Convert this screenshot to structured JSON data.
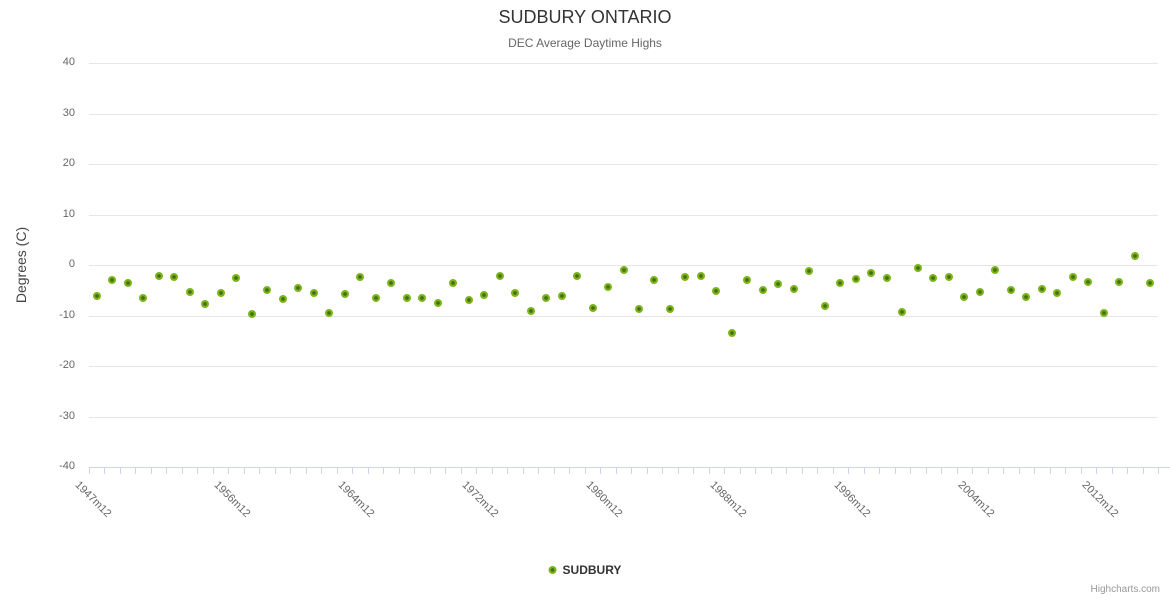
{
  "chart": {
    "title": "SUDBURY ONTARIO",
    "subtitle": "DEC Average Daytime Highs",
    "y_axis_title": "Degrees (C)",
    "legend_label": "SUDBURY",
    "credits": "Highcharts.com"
  },
  "colors": {
    "marker_outer": "#7db41e",
    "marker_core": "#44700f",
    "grid": "#e6e6e6",
    "axis_tick": "#ccd6eb",
    "title_text": "#333333",
    "subtitle_text": "#666666",
    "axis_label_text": "#666666",
    "legend_text": "#333333",
    "credits_text": "#999999"
  },
  "chart_data": {
    "type": "scatter",
    "title": "SUDBURY ONTARIO",
    "subtitle": "DEC Average Daytime Highs",
    "xlabel": "",
    "ylabel": "Degrees (C)",
    "ylim": [
      -40,
      40
    ],
    "y_tick_values": [
      40,
      30,
      20,
      10,
      0,
      -10,
      -20,
      -30,
      -40
    ],
    "y_tick_labels": [
      "40",
      "30",
      "20",
      "10",
      "0",
      "-10",
      "-20",
      "-30",
      "-40"
    ],
    "grid": true,
    "legend_position": "bottom-center",
    "x_tick_labels_visible": [
      "1947m12",
      "1956m12",
      "1964m12",
      "1972m12",
      "1980m12",
      "1988m12",
      "1996m12",
      "2004m12",
      "2012m12"
    ],
    "x_tick_label_indices": [
      0,
      9,
      17,
      25,
      33,
      41,
      49,
      57,
      65
    ],
    "series": [
      {
        "name": "SUDBURY",
        "x_categories": [
          "1947m12",
          "1948m12",
          "1949m12",
          "1950m12",
          "1951m12",
          "1952m12",
          "1953m12",
          "1954m12",
          "1955m12",
          "1956m12",
          "1957m12",
          "1958m12",
          "1959m12",
          "1960m12",
          "1961m12",
          "1962m12",
          "1963m12",
          "1964m12",
          "1965m12",
          "1966m12",
          "1967m12",
          "1968m12",
          "1969m12",
          "1970m12",
          "1971m12",
          "1972m12",
          "1973m12",
          "1974m12",
          "1975m12",
          "1976m12",
          "1977m12",
          "1978m12",
          "1979m12",
          "1980m12",
          "1981m12",
          "1982m12",
          "1983m12",
          "1984m12",
          "1985m12",
          "1986m12",
          "1987m12",
          "1988m12",
          "1989m12",
          "1990m12",
          "1991m12",
          "1992m12",
          "1993m12",
          "1994m12",
          "1995m12",
          "1996m12",
          "1997m12",
          "1998m12",
          "1999m12",
          "2000m12",
          "2001m12",
          "2002m12",
          "2003m12",
          "2004m12",
          "2005m12",
          "2006m12",
          "2007m12",
          "2008m12",
          "2009m12",
          "2010m12",
          "2011m12",
          "2012m12",
          "2013m12",
          "2014m12",
          "2015m12"
        ],
        "values": [
          -6.2,
          -3.0,
          -3.6,
          -6.6,
          -2.2,
          -2.4,
          -5.3,
          -7.8,
          -5.6,
          -2.6,
          -9.7,
          -4.9,
          -6.8,
          -4.5,
          -5.6,
          -9.5,
          -5.8,
          -2.4,
          -6.5,
          -3.5,
          -6.5,
          -6.5,
          -7.6,
          -3.5,
          -7.0,
          -6.0,
          -2.2,
          -5.6,
          -9.1,
          -6.5,
          -6.2,
          -2.2,
          -8.6,
          -4.4,
          -0.9,
          -8.7,
          -3.0,
          -8.7,
          -2.4,
          -2.2,
          -5.1,
          -13.4,
          -3.0,
          -5.0,
          -3.7,
          -4.8,
          -1.2,
          -8.2,
          -3.6,
          -2.8,
          -1.6,
          -2.5,
          -9.3,
          -0.5,
          -2.6,
          -2.4,
          -6.4,
          -5.3,
          -1.0,
          -4.9,
          -6.4,
          -4.8,
          -5.5,
          -2.4,
          -3.4,
          -9.5,
          -3.4,
          1.7,
          -3.5
        ]
      }
    ]
  }
}
